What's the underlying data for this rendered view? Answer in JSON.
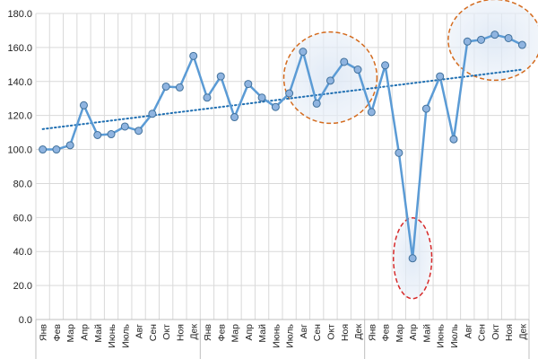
{
  "chart_data": {
    "type": "line",
    "title": "",
    "xlabel": "",
    "ylabel": "",
    "ylim": [
      0,
      180
    ],
    "yticks": [
      "0.0",
      "20.0",
      "40.0",
      "60.0",
      "80.0",
      "100.0",
      "120.0",
      "140.0",
      "160.0",
      "180.0"
    ],
    "grid": "vertical and horizontal",
    "categories": [
      "Янв",
      "Фев",
      "Мар",
      "Апр",
      "Май",
      "Июнь",
      "Июль",
      "Авг",
      "Сен",
      "Окт",
      "Ноя",
      "Дек",
      "Янв",
      "Фев",
      "Мар",
      "Апр",
      "Май",
      "Июнь",
      "Июль",
      "Авг",
      "Сен",
      "Окт",
      "Ноя",
      "Дек",
      "Янв",
      "Фев",
      "Мар",
      "Апр",
      "Май",
      "Июнь",
      "Июль",
      "Авг",
      "Сен",
      "Окт",
      "Ноя",
      "Дек"
    ],
    "series": [
      {
        "values": [
          100,
          100,
          102.5,
          126,
          108.5,
          109,
          113.5,
          111,
          121,
          137,
          136.5,
          155,
          130.5,
          143,
          119,
          138.5,
          130.5,
          125,
          133,
          157.5,
          127,
          140.5,
          151.5,
          147,
          122,
          149.5,
          98,
          36,
          124,
          143,
          106,
          163.5,
          164.5,
          167.5,
          165.5,
          161.5
        ],
        "color": "#5b9bd5"
      }
    ],
    "trendline": {
      "type": "linear",
      "start": 112,
      "end": 147,
      "color": "#1f6fb2",
      "style": "dotted"
    },
    "highlights": [
      {
        "category_range": [
          19,
          23
        ],
        "color": "#d46b1e",
        "style": "dashed ellipse"
      },
      {
        "category_range": [
          27,
          27
        ],
        "color": "#d62a2a",
        "style": "dashed ellipse"
      },
      {
        "category_range": [
          31,
          35
        ],
        "color": "#d46b1e",
        "style": "dashed ellipse"
      }
    ]
  }
}
